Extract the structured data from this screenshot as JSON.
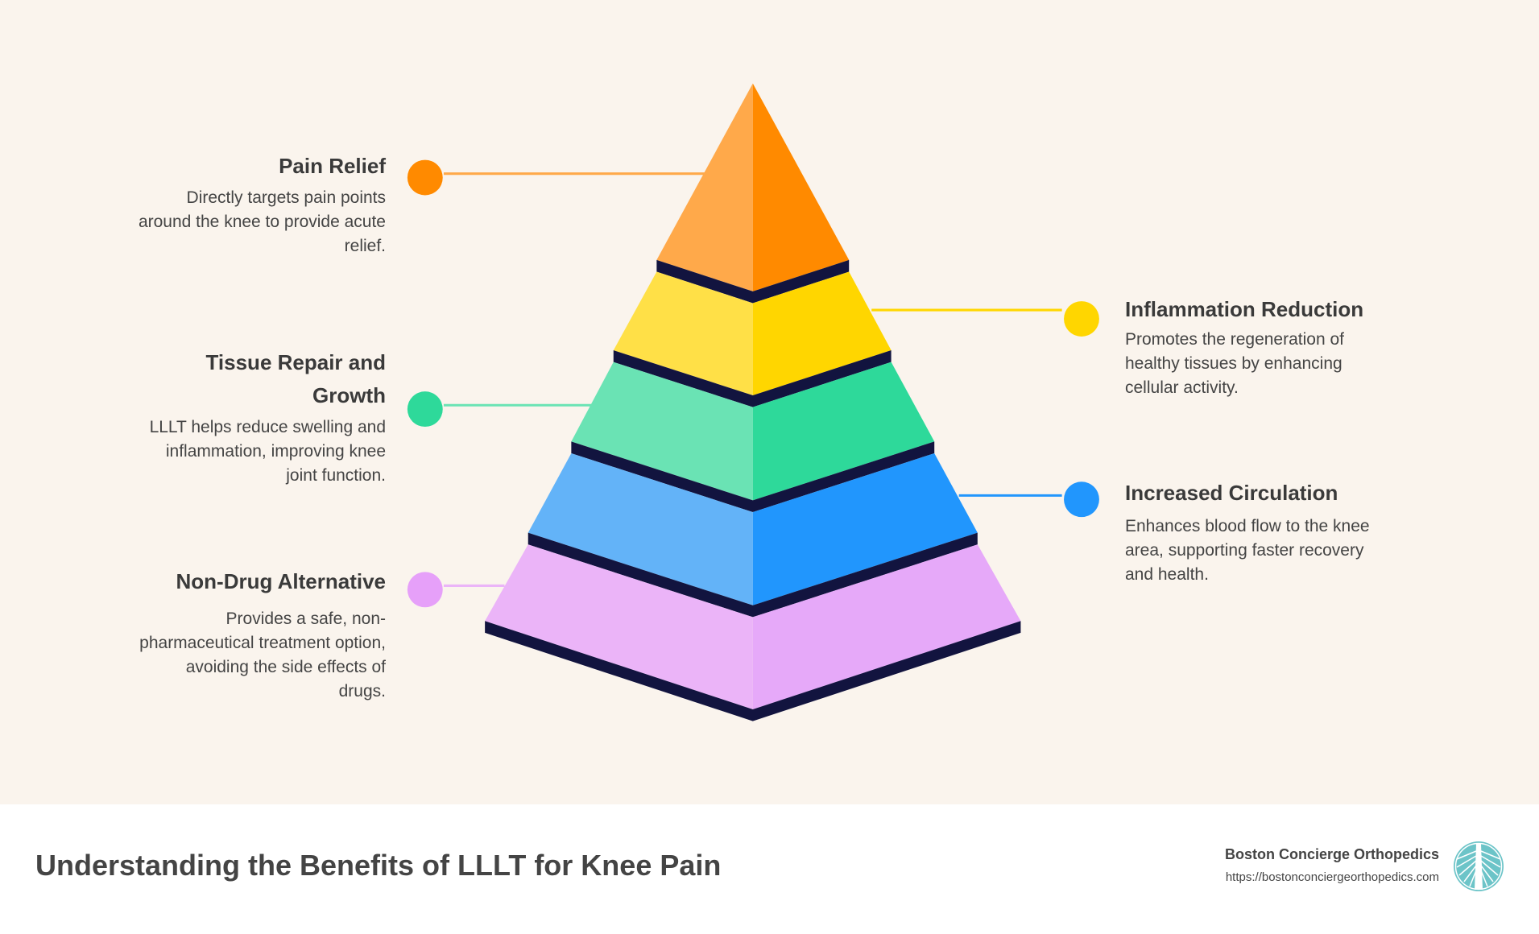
{
  "colors": {
    "background": "#faf4ed",
    "band": "#12143f",
    "orange": [
      "#ffa94a",
      "#ff8a00"
    ],
    "yellow": [
      "#ffe047",
      "#ffd600"
    ],
    "green": [
      "#6ae3b4",
      "#2ed99a"
    ],
    "blue": [
      "#63b3f8",
      "#2196fd"
    ],
    "purple": [
      "#ebb4f8",
      "#e6a9f9"
    ],
    "logo": "#6cc4c8"
  },
  "benefits": [
    {
      "title": "Pain Relief",
      "body": [
        "Directly targets pain points",
        "around the knee to provide acute",
        "relief."
      ]
    },
    {
      "title": "Inflammation Reduction",
      "body": [
        "Promotes the regeneration of",
        "healthy tissues by enhancing",
        "cellular activity."
      ]
    },
    {
      "title_lines": [
        "Tissue Repair and",
        "Growth"
      ],
      "body": [
        "LLLT helps reduce swelling and",
        "inflammation, improving knee",
        "joint function."
      ]
    },
    {
      "title": "Increased Circulation",
      "body": [
        "Enhances blood flow to the knee",
        "area, supporting faster recovery",
        "and health."
      ]
    },
    {
      "title": "Non-Drug Alternative",
      "body": [
        "Provides a safe, non-",
        "pharmaceutical treatment option,",
        "avoiding the side effects of",
        "drugs."
      ]
    }
  ],
  "footer": {
    "title": "Understanding the Benefits of LLLT for Knee Pain",
    "company": "Boston Concierge Orthopedics",
    "url": "https://bostonconciergeorthopedics.com",
    "logo_icon": "bridge-tower-icon"
  }
}
